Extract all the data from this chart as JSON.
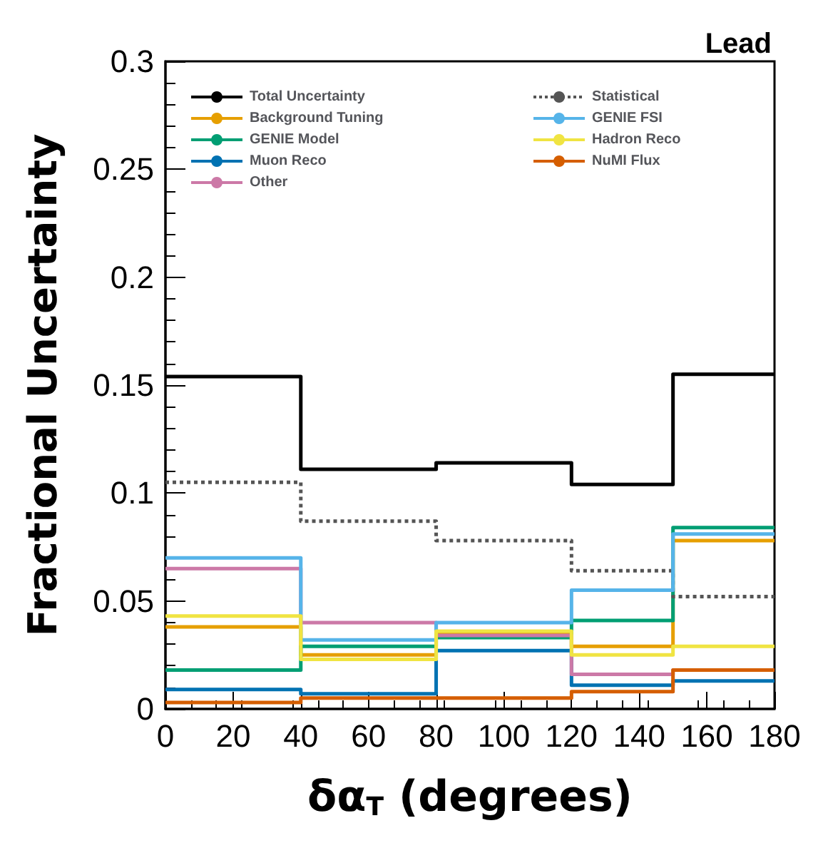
{
  "chart_data": {
    "type": "histogram",
    "title": "Lead",
    "xlabel": "δα$_{T}$ (degrees)",
    "ylabel": "Fractional Uncertainty",
    "bins": [
      0,
      40,
      80,
      120,
      150,
      180
    ],
    "xlim": [
      0,
      180
    ],
    "xticks": [
      0,
      20,
      40,
      60,
      80,
      100,
      120,
      140,
      160,
      180
    ],
    "ylim": [
      0,
      0.3
    ],
    "yticks": [
      0,
      0.05,
      0.1,
      0.15,
      0.2,
      0.25,
      0.3
    ],
    "grid": false,
    "legend": "top left",
    "marker": "none",
    "series": [
      {
        "name": "Total Uncertainty",
        "color": "#000000",
        "values": [
          0.154,
          0.111,
          0.114,
          0.104,
          0.155
        ]
      },
      {
        "name": "Background Tuning",
        "color": "#e69f00",
        "values": [
          0.038,
          0.025,
          0.035,
          0.029,
          0.078
        ]
      },
      {
        "name": "GENIE Model",
        "color": "#009e73",
        "values": [
          0.018,
          0.029,
          0.033,
          0.041,
          0.084
        ]
      },
      {
        "name": "Muon Reco",
        "color": "#0072b2",
        "values": [
          0.009,
          0.007,
          0.027,
          0.011,
          0.013
        ]
      },
      {
        "name": "Other",
        "color": "#cc79a7",
        "values": [
          0.065,
          0.04,
          0.034,
          0.016,
          0.018
        ]
      },
      {
        "name": "Statistical",
        "color": "#555555",
        "line_style": "dotted",
        "values": [
          0.105,
          0.087,
          0.078,
          0.064,
          0.052
        ]
      },
      {
        "name": "GENIE FSI",
        "color": "#56b4e9",
        "values": [
          0.07,
          0.032,
          0.04,
          0.055,
          0.081
        ]
      },
      {
        "name": "Hadron Reco",
        "color": "#f0e442",
        "values": [
          0.043,
          0.023,
          0.036,
          0.025,
          0.029
        ]
      },
      {
        "name": "NuMI Flux",
        "color": "#d55e00",
        "values": [
          0.003,
          0.005,
          0.005,
          0.008,
          0.018
        ]
      }
    ]
  }
}
